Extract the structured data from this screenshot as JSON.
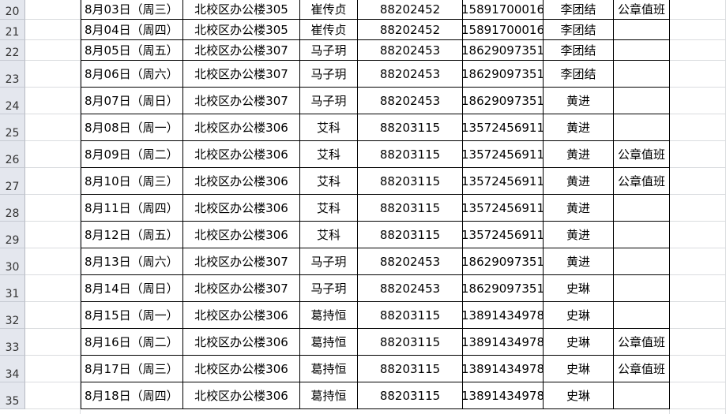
{
  "sheet": {
    "rows": [
      {
        "num": "20",
        "date": "8月03日（周三）",
        "place": "北校区办公楼305",
        "name": "崔传贞",
        "phone": "88202452",
        "mobile": "15891700016",
        "leader": "李团结",
        "note": "公章值班"
      },
      {
        "num": "21",
        "date": "8月04日（周四）",
        "place": "北校区办公楼305",
        "name": "崔传贞",
        "phone": "88202452",
        "mobile": "15891700016",
        "leader": "李团结",
        "note": ""
      },
      {
        "num": "22",
        "date": "8月05日（周五）",
        "place": "北校区办公楼307",
        "name": "马子玥",
        "phone": "88202453",
        "mobile": "18629097351",
        "leader": "李团结",
        "note": ""
      },
      {
        "num": "23",
        "date": "8月06日（周六）",
        "place": "北校区办公楼307",
        "name": "马子玥",
        "phone": "88202453",
        "mobile": "18629097351",
        "leader": "李团结",
        "note": ""
      },
      {
        "num": "24",
        "date": "8月07日（周日）",
        "place": "北校区办公楼307",
        "name": "马子玥",
        "phone": "88202453",
        "mobile": "18629097351",
        "leader": "黄进",
        "note": ""
      },
      {
        "num": "25",
        "date": "8月08日（周一）",
        "place": "北校区办公楼306",
        "name": "艾科",
        "phone": "88203115",
        "mobile": "13572456911",
        "leader": "黄进",
        "note": ""
      },
      {
        "num": "26",
        "date": "8月09日（周二）",
        "place": "北校区办公楼306",
        "name": "艾科",
        "phone": "88203115",
        "mobile": "13572456911",
        "leader": "黄进",
        "note": "公章值班"
      },
      {
        "num": "27",
        "date": "8月10日（周三）",
        "place": "北校区办公楼306",
        "name": "艾科",
        "phone": "88203115",
        "mobile": "13572456911",
        "leader": "黄进",
        "note": "公章值班"
      },
      {
        "num": "28",
        "date": "8月11日（周四）",
        "place": "北校区办公楼306",
        "name": "艾科",
        "phone": "88203115",
        "mobile": "13572456911",
        "leader": "黄进",
        "note": ""
      },
      {
        "num": "29",
        "date": "8月12日（周五）",
        "place": "北校区办公楼306",
        "name": "艾科",
        "phone": "88203115",
        "mobile": "13572456911",
        "leader": "黄进",
        "note": ""
      },
      {
        "num": "30",
        "date": "8月13日（周六）",
        "place": "北校区办公楼307",
        "name": "马子玥",
        "phone": "88202453",
        "mobile": "18629097351",
        "leader": "黄进",
        "note": ""
      },
      {
        "num": "31",
        "date": "8月14日（周日）",
        "place": "北校区办公楼307",
        "name": "马子玥",
        "phone": "88202453",
        "mobile": "18629097351",
        "leader": "史琳",
        "note": ""
      },
      {
        "num": "32",
        "date": "8月15日（周一）",
        "place": "北校区办公楼306",
        "name": "葛持恒",
        "phone": "88203115",
        "mobile": "13891434978",
        "leader": "史琳",
        "note": ""
      },
      {
        "num": "33",
        "date": "8月16日（周二）",
        "place": "北校区办公楼306",
        "name": "葛持恒",
        "phone": "88203115",
        "mobile": "13891434978",
        "leader": "史琳",
        "note": "公章值班"
      },
      {
        "num": "34",
        "date": "8月17日（周三）",
        "place": "北校区办公楼306",
        "name": "葛持恒",
        "phone": "88203115",
        "mobile": "13891434978",
        "leader": "史琳",
        "note": "公章值班"
      },
      {
        "num": "35",
        "date": "8月18日（周四）",
        "place": "北校区办公楼306",
        "name": "葛持恒",
        "phone": "88203115",
        "mobile": "13891434978",
        "leader": "史琳",
        "note": ""
      }
    ]
  }
}
